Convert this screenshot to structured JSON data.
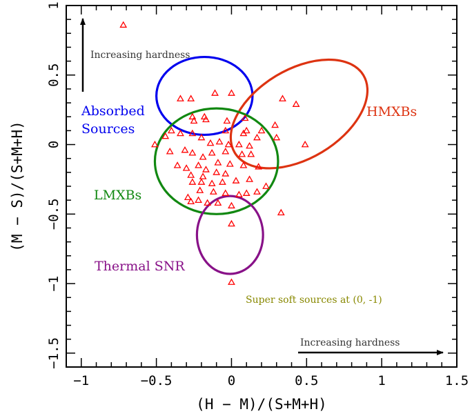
{
  "chart_data": {
    "type": "scatter",
    "title": "",
    "xlabel": "(H − M)/(S+M+H)",
    "ylabel": "(M − S)/(S+M+H)",
    "xlim": [
      -1.1,
      1.5
    ],
    "ylim": [
      -1.6,
      1.0
    ],
    "x_ticks": [
      -1,
      -0.5,
      0,
      0.5,
      1,
      1.5
    ],
    "x_tick_labels": [
      "−1",
      "−0.5",
      "0",
      "0.5",
      "1",
      "1.5"
    ],
    "y_ticks": [
      -1.5,
      -1,
      -0.5,
      0,
      0.5,
      1
    ],
    "y_tick_labels": [
      "−1.5",
      "−1",
      "−0.5",
      "0",
      "0.5",
      "1"
    ],
    "grid": false,
    "marker": "open-triangle",
    "marker_color": "#ff0000",
    "points": [
      [
        -0.72,
        0.86
      ],
      [
        -0.34,
        0.33
      ],
      [
        -0.27,
        0.33
      ],
      [
        -0.11,
        0.37
      ],
      [
        0.0,
        0.37
      ],
      [
        0.34,
        0.33
      ],
      [
        0.43,
        0.29
      ],
      [
        -0.26,
        0.2
      ],
      [
        -0.18,
        0.2
      ],
      [
        -0.25,
        0.17
      ],
      [
        -0.17,
        0.18
      ],
      [
        -0.03,
        0.17
      ],
      [
        0.09,
        0.19
      ],
      [
        0.29,
        0.14
      ],
      [
        -0.51,
        0.0
      ],
      [
        -0.44,
        0.06
      ],
      [
        -0.4,
        0.1
      ],
      [
        -0.34,
        0.08
      ],
      [
        -0.26,
        0.08
      ],
      [
        -0.04,
        0.1
      ],
      [
        0.1,
        0.1
      ],
      [
        0.08,
        0.08
      ],
      [
        0.2,
        0.1
      ],
      [
        0.17,
        0.05
      ],
      [
        0.3,
        0.05
      ],
      [
        0.49,
        0.0
      ],
      [
        -0.2,
        0.05
      ],
      [
        -0.14,
        0.01
      ],
      [
        -0.08,
        0.02
      ],
      [
        -0.02,
        0.0
      ],
      [
        0.05,
        0.0
      ],
      [
        0.12,
        -0.01
      ],
      [
        -0.31,
        -0.04
      ],
      [
        -0.41,
        -0.05
      ],
      [
        -0.26,
        -0.06
      ],
      [
        -0.19,
        -0.09
      ],
      [
        -0.13,
        -0.06
      ],
      [
        -0.04,
        -0.05
      ],
      [
        0.07,
        -0.07
      ],
      [
        0.13,
        -0.07
      ],
      [
        -0.36,
        -0.15
      ],
      [
        -0.3,
        -0.17
      ],
      [
        -0.22,
        -0.15
      ],
      [
        -0.17,
        -0.18
      ],
      [
        -0.09,
        -0.13
      ],
      [
        -0.01,
        -0.14
      ],
      [
        0.08,
        -0.15
      ],
      [
        0.18,
        -0.16
      ],
      [
        -0.27,
        -0.22
      ],
      [
        -0.19,
        -0.23
      ],
      [
        -0.1,
        -0.2
      ],
      [
        -0.04,
        -0.21
      ],
      [
        -0.26,
        -0.27
      ],
      [
        -0.2,
        -0.27
      ],
      [
        -0.13,
        -0.28
      ],
      [
        -0.06,
        -0.27
      ],
      [
        0.03,
        -0.26
      ],
      [
        0.12,
        -0.25
      ],
      [
        0.23,
        -0.3
      ],
      [
        -0.21,
        -0.33
      ],
      [
        -0.12,
        -0.34
      ],
      [
        -0.04,
        -0.35
      ],
      [
        0.05,
        -0.36
      ],
      [
        0.1,
        -0.35
      ],
      [
        0.17,
        -0.34
      ],
      [
        -0.29,
        -0.38
      ],
      [
        -0.27,
        -0.41
      ],
      [
        -0.22,
        -0.4
      ],
      [
        -0.16,
        -0.42
      ],
      [
        -0.09,
        -0.42
      ],
      [
        0.0,
        -0.44
      ],
      [
        0.33,
        -0.49
      ],
      [
        -0.0,
        -0.57
      ],
      [
        -0.0,
        -0.99
      ]
    ],
    "regions": [
      {
        "name": "Absorbed Sources",
        "label": [
          "Absorbed",
          "Sources"
        ],
        "color": "#0000ee",
        "center": [
          -0.18,
          0.35
        ],
        "radius_x": 0.32,
        "radius_y": 0.28
      },
      {
        "name": "HMXBs",
        "label": [
          "HMXBs"
        ],
        "color": "#dd3311",
        "center": [
          0.45,
          0.22
        ],
        "radius_x": 0.5,
        "radius_y": 0.32,
        "rotation_deg": -31
      },
      {
        "name": "LMXBs",
        "label": [
          "LMXBs"
        ],
        "color": "#118811",
        "center": [
          -0.1,
          -0.12
        ],
        "radius_x": 0.41,
        "radius_y": 0.38
      },
      {
        "name": "Thermal SNR",
        "label": [
          "Thermal SNR"
        ],
        "color": "#881188",
        "center": [
          -0.01,
          -0.65
        ],
        "radius_x": 0.22,
        "radius_y": 0.28
      }
    ],
    "annotations": [
      {
        "text": "Increasing hardness",
        "direction": "up",
        "color": "#000000"
      },
      {
        "text": "Increasing hardness",
        "direction": "right",
        "color": "#000000"
      },
      {
        "text": "Super soft sources at (0, -1)",
        "color": "#888800"
      }
    ]
  }
}
